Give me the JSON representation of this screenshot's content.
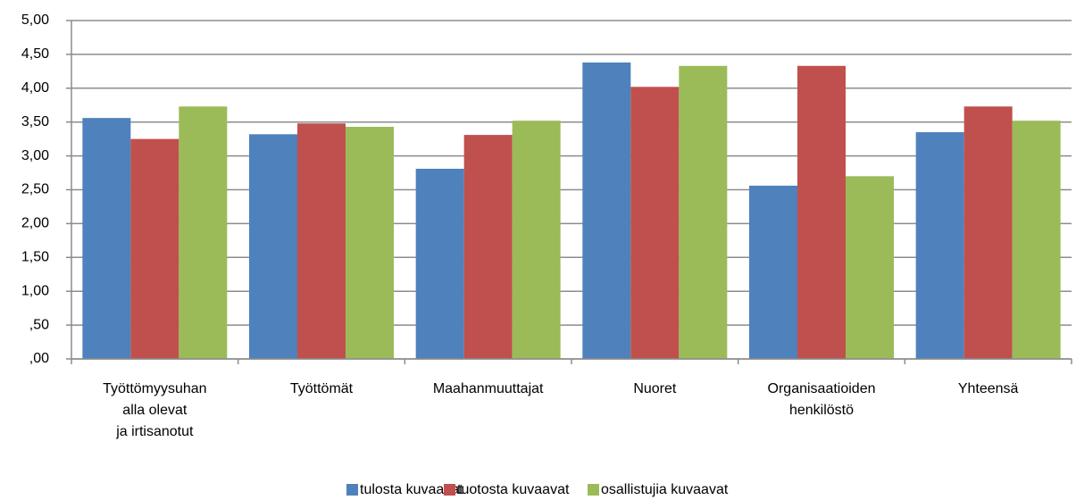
{
  "chart_data": {
    "type": "bar",
    "categories": [
      "Työttömyysuhan\nalla olevat\nja irtisanotut",
      "Työttömät",
      "Maahanmuuttajat",
      "Nuoret",
      "Organisaatioiden\nhenkilöstö",
      "Yhteensä"
    ],
    "series": [
      {
        "name": "tulosta kuvaavat",
        "color": "#4f81bd",
        "values": [
          3.56,
          3.32,
          2.81,
          4.38,
          2.56,
          3.35
        ]
      },
      {
        "name": "tuotosta kuvaavat",
        "color": "#c0504d",
        "values": [
          3.25,
          3.48,
          3.31,
          4.02,
          4.33,
          3.73
        ]
      },
      {
        "name": "osallistujia kuvaavat",
        "color": "#9bbb59",
        "values": [
          3.73,
          3.43,
          3.52,
          4.33,
          2.7,
          3.52
        ]
      }
    ],
    "ylim": [
      0,
      5
    ],
    "yticks": [
      {
        "value": 0,
        "label": ",00"
      },
      {
        "value": 0.5,
        "label": ",50"
      },
      {
        "value": 1,
        "label": "1,00"
      },
      {
        "value": 1.5,
        "label": "1,50"
      },
      {
        "value": 2,
        "label": "2,00"
      },
      {
        "value": 2.5,
        "label": "2,50"
      },
      {
        "value": 3,
        "label": "3,00"
      },
      {
        "value": 3.5,
        "label": "3,50"
      },
      {
        "value": 4,
        "label": "4,00"
      },
      {
        "value": 4.5,
        "label": "4,50"
      },
      {
        "value": 5,
        "label": "5,00"
      }
    ],
    "grid": true,
    "legend": "bottom"
  }
}
